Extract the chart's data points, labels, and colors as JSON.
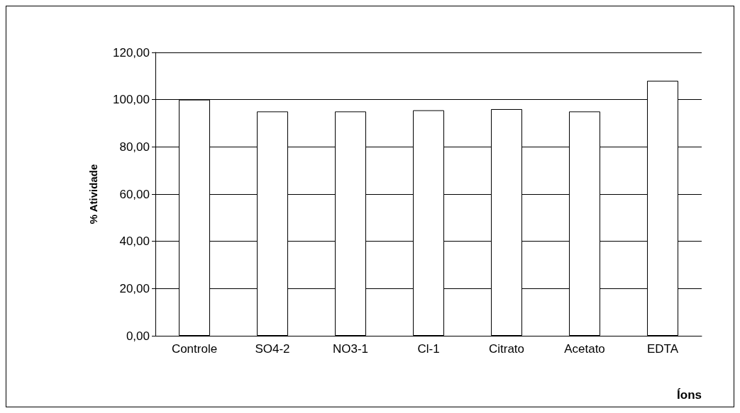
{
  "chart_data": {
    "type": "bar",
    "xlabel": "Íons",
    "ylabel": "% Atividade",
    "categories": [
      "Controle",
      "SO4-2",
      "NO3-1",
      "Cl-1",
      "Citrato",
      "Acetato",
      "EDTA"
    ],
    "values": [
      100,
      95,
      95,
      95.5,
      96,
      95,
      108
    ],
    "color": "#ffffff",
    "ylim": [
      0,
      120
    ],
    "yticks": [
      {
        "value": 0,
        "label": "0,00"
      },
      {
        "value": 20,
        "label": "20,00"
      },
      {
        "value": 40,
        "label": "40,00"
      },
      {
        "value": 60,
        "label": "60,00"
      },
      {
        "value": 80,
        "label": "80,00"
      },
      {
        "value": 100,
        "label": "100,00"
      },
      {
        "value": 120,
        "label": "120,00"
      }
    ],
    "grid": "y"
  }
}
